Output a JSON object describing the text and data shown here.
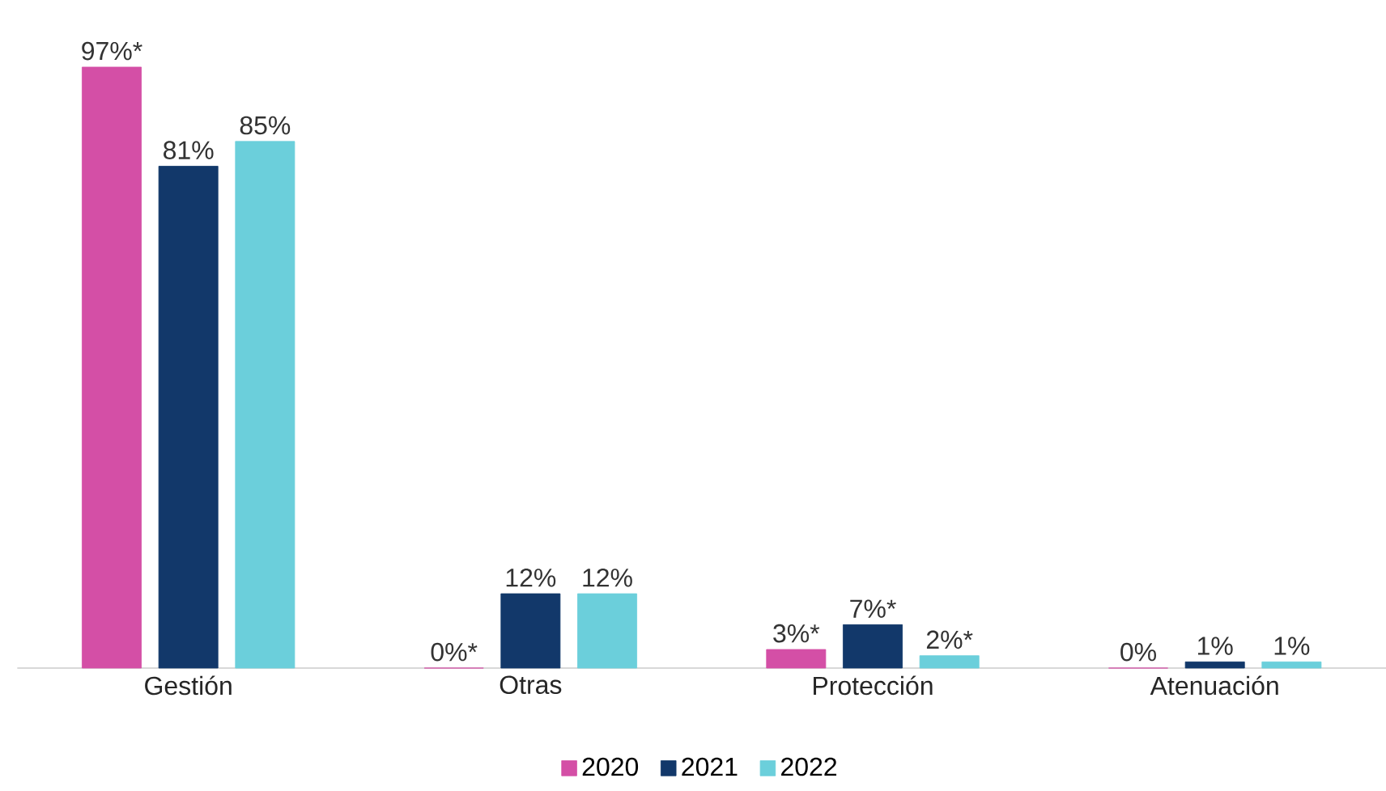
{
  "chart_data": {
    "type": "bar",
    "categories": [
      "Gestión",
      "Otras",
      "Protección",
      "Atenuación"
    ],
    "legend": "bottom",
    "series": [
      {
        "name": "2020",
        "color": "#d44fa6",
        "values": [
          97,
          0,
          3,
          0
        ],
        "value_labels": [
          "97%*",
          "0%*",
          "3%*",
          "0%"
        ]
      },
      {
        "name": "2021",
        "color": "#12386a",
        "values": [
          81,
          12,
          7,
          1
        ],
        "value_labels": [
          "81%",
          "12%",
          "7%*",
          "1%"
        ]
      },
      {
        "name": "2022",
        "color": "#6bcfdb",
        "values": [
          85,
          12,
          2,
          1
        ],
        "value_labels": [
          "85%",
          "12%",
          "2%*",
          "1%"
        ]
      }
    ]
  }
}
